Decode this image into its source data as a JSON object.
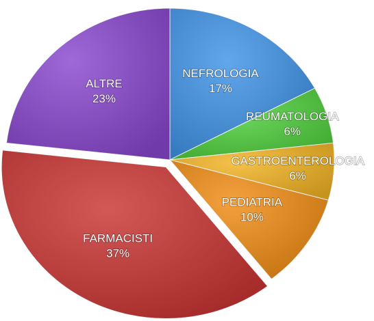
{
  "chart_data": {
    "type": "pie",
    "categories": [
      "NEFROLOGIA",
      "REUMATOLOGIA",
      "GASTROENTEROLOGIA",
      "PEDIATRIA",
      "FARMACISTI",
      "ALTRE"
    ],
    "values": [
      17,
      6,
      6,
      10,
      37,
      23
    ],
    "value_labels": [
      "17%",
      "6%",
      "6%",
      "10%",
      "37%",
      "23%"
    ],
    "colors": [
      "#3f93e6",
      "#4fcf3c",
      "#f2b322",
      "#f08c14",
      "#c93432",
      "#8a47cf"
    ],
    "exploded": "FARMACISTI"
  }
}
